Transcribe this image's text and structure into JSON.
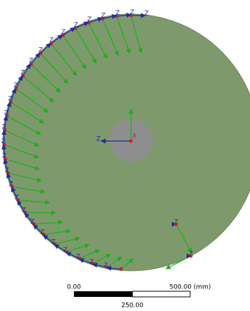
{
  "axis_labels": {
    "x": "X",
    "y": "Y",
    "z": "Z"
  },
  "scale_bar": {
    "start_label": "0.00",
    "end_label": "500.00 (mm)",
    "mid_label": "250.00"
  }
}
